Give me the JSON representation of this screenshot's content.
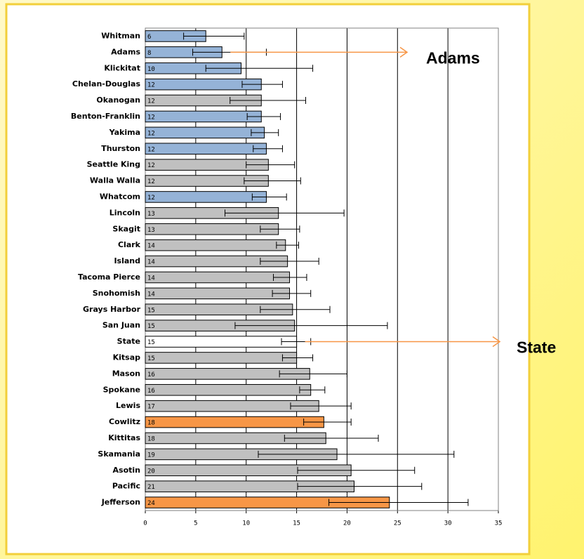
{
  "chart_data": {
    "type": "bar",
    "orientation": "horizontal",
    "categories": [
      "Whitman",
      "Adams",
      "Klickitat",
      "Chelan-Douglas",
      "Okanogan",
      "Benton-Franklin",
      "Yakima",
      "Thurston",
      "Seattle King",
      "Walla Walla",
      "Whatcom",
      "Lincoln",
      "Skagit",
      "Clark",
      "Island",
      "Tacoma Pierce",
      "Snohomish",
      "Grays Harbor",
      "San Juan",
      "State",
      "Kitsap",
      "Mason",
      "Spokane",
      "Lewis",
      "Cowlitz",
      "Kittitas",
      "Skamania",
      "Asotin",
      "Pacific",
      "Jefferson"
    ],
    "values": [
      6.0,
      7.6,
      9.5,
      11.5,
      11.5,
      11.5,
      11.8,
      12.0,
      12.2,
      12.2,
      12.0,
      13.2,
      13.2,
      13.9,
      14.1,
      14.3,
      14.3,
      14.6,
      14.8,
      15.0,
      15.0,
      16.3,
      16.4,
      17.2,
      17.7,
      17.9,
      19.0,
      20.4,
      20.7,
      24.2
    ],
    "value_labels": [
      "6",
      "8",
      "10",
      "12",
      "12",
      "12",
      "12",
      "12",
      "12",
      "12",
      "12",
      "13",
      "13",
      "14",
      "14",
      "14",
      "14",
      "15",
      "15",
      "15",
      "15",
      "16",
      "16",
      "17",
      "18",
      "18",
      "19",
      "20",
      "21",
      "24"
    ],
    "error_low": [
      3.8,
      4.7,
      6.0,
      9.6,
      8.4,
      10.1,
      10.5,
      10.7,
      10.0,
      9.8,
      10.6,
      7.9,
      11.4,
      13.0,
      11.4,
      12.7,
      12.6,
      11.4,
      8.9,
      13.5,
      13.6,
      13.3,
      15.3,
      14.4,
      15.7,
      13.8,
      11.2,
      15.1,
      15.1,
      18.2
    ],
    "error_high": [
      9.8,
      12.0,
      16.6,
      13.6,
      15.9,
      13.4,
      13.2,
      13.6,
      14.8,
      15.4,
      14.0,
      19.7,
      15.3,
      15.2,
      17.2,
      16.0,
      16.4,
      18.3,
      24.0,
      16.4,
      16.6,
      20.0,
      17.8,
      20.4,
      20.4,
      23.1,
      30.6,
      26.7,
      27.4,
      32.0
    ],
    "colors": [
      "#95b3d7",
      "#95b3d7",
      "#95b3d7",
      "#95b3d7",
      "#c0c0c0",
      "#95b3d7",
      "#95b3d7",
      "#95b3d7",
      "#c0c0c0",
      "#c0c0c0",
      "#95b3d7",
      "#c0c0c0",
      "#c0c0c0",
      "#c0c0c0",
      "#c0c0c0",
      "#c0c0c0",
      "#c0c0c0",
      "#c0c0c0",
      "#c0c0c0",
      "#ffffff",
      "#c0c0c0",
      "#c0c0c0",
      "#c0c0c0",
      "#c0c0c0",
      "#f79646",
      "#c0c0c0",
      "#c0c0c0",
      "#c0c0c0",
      "#c0c0c0",
      "#f79646"
    ],
    "xlim": [
      0,
      35
    ],
    "xticks": [
      0,
      5,
      10,
      15,
      20,
      25,
      30,
      35
    ],
    "grid": true,
    "annotations": [
      "Adams",
      "State"
    ]
  }
}
